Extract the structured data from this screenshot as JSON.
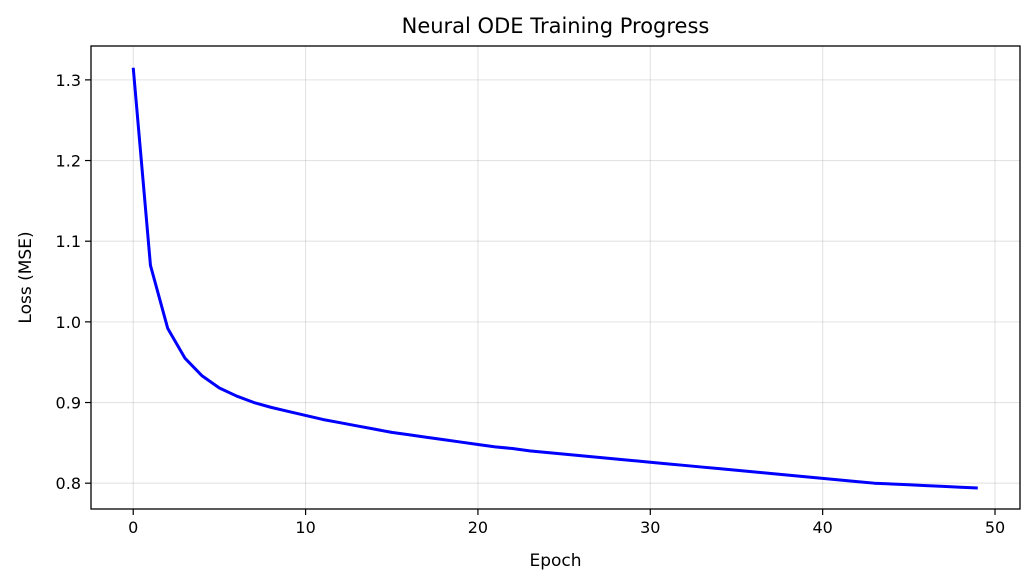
{
  "chart_data": {
    "type": "line",
    "title": "Neural ODE Training Progress",
    "xlabel": "Epoch",
    "ylabel": "Loss (MSE)",
    "xlim": [
      -2.45,
      51.45
    ],
    "ylim": [
      0.768,
      1.342
    ],
    "xticks": [
      0,
      10,
      20,
      30,
      40,
      50
    ],
    "yticks": [
      0.8,
      0.9,
      1.0,
      1.1,
      1.2,
      1.3
    ],
    "ytick_labels": [
      "0.8",
      "0.9",
      "1.0",
      "1.1",
      "1.2",
      "1.3"
    ],
    "grid": true,
    "legend": "none",
    "series": [
      {
        "color": "#0000ff",
        "x": [
          0,
          1,
          2,
          3,
          4,
          5,
          6,
          7,
          8,
          9,
          10,
          11,
          12,
          13,
          14,
          15,
          16,
          17,
          18,
          19,
          20,
          21,
          22,
          23,
          24,
          25,
          26,
          27,
          28,
          29,
          30,
          31,
          32,
          33,
          34,
          35,
          36,
          37,
          38,
          39,
          40,
          41,
          42,
          43,
          44,
          45,
          46,
          47,
          48,
          49
        ],
        "y": [
          1.315,
          1.07,
          0.992,
          0.955,
          0.933,
          0.918,
          0.908,
          0.9,
          0.894,
          0.889,
          0.884,
          0.879,
          0.875,
          0.871,
          0.867,
          0.863,
          0.86,
          0.857,
          0.854,
          0.851,
          0.848,
          0.845,
          0.843,
          0.84,
          0.838,
          0.836,
          0.834,
          0.832,
          0.83,
          0.828,
          0.826,
          0.824,
          0.822,
          0.82,
          0.818,
          0.816,
          0.814,
          0.812,
          0.81,
          0.808,
          0.806,
          0.804,
          0.802,
          0.8,
          0.799,
          0.798,
          0.797,
          0.796,
          0.795,
          0.794
        ]
      }
    ]
  }
}
